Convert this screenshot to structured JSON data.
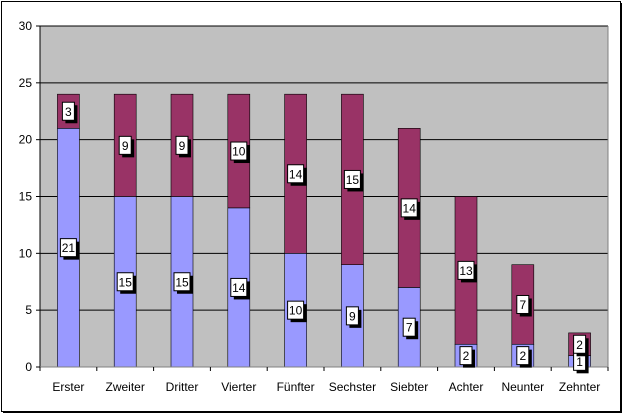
{
  "chart_data": {
    "type": "bar",
    "stacked": true,
    "categories": [
      "Erster",
      "Zweiter",
      "Dritter",
      "Vierter",
      "Fünfter",
      "Sechster",
      "Siebter",
      "Achter",
      "Neunter",
      "Zehnter"
    ],
    "series": [
      {
        "values": [
          21,
          15,
          15,
          14,
          10,
          9,
          7,
          2,
          2,
          1
        ],
        "color": "#9999ff"
      },
      {
        "values": [
          3,
          9,
          9,
          10,
          14,
          15,
          14,
          13,
          7,
          2
        ],
        "color": "#993366"
      }
    ],
    "ylim": [
      0,
      30
    ],
    "yticks": [
      0,
      5,
      10,
      15,
      20,
      25,
      30
    ],
    "grid": true,
    "legend": "none",
    "plot_background": "#c0c0c0",
    "data_labels": true
  }
}
